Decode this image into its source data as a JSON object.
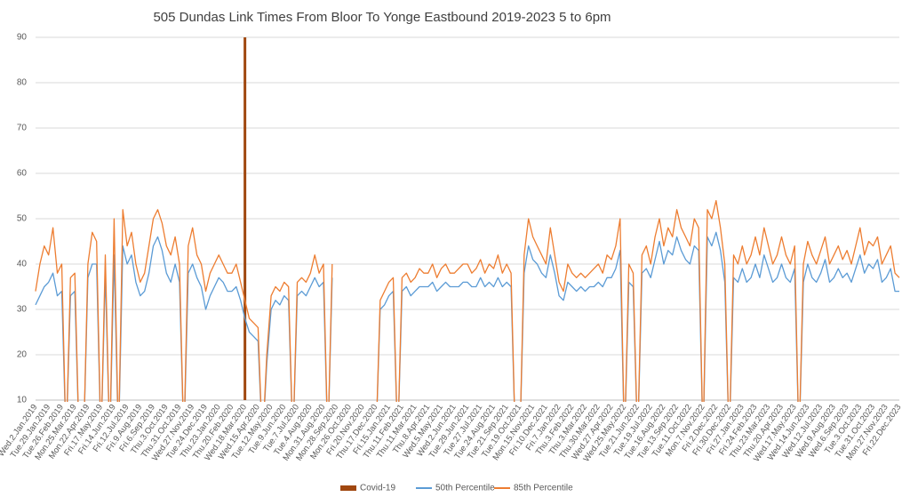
{
  "chart_data": {
    "type": "line",
    "title": "505 Dundas Link Times From Bloor To Yonge Eastbound 2019-2023 5 to 6pm",
    "categories": [
      "Wed.2.Jan.2019",
      null,
      null,
      "Tue.29.Jan.2019",
      null,
      null,
      "Tue.26.Feb.2019",
      null,
      null,
      "Mon.25.Mar.2019",
      null,
      null,
      "Mon.22.Apr.2019",
      null,
      null,
      "Fri.17.May.2019",
      null,
      null,
      "Fri.14.Jun.2019",
      null,
      null,
      "Fri.12.Jul.2019",
      null,
      null,
      "Fri.9.Aug.2019",
      null,
      null,
      "Fri.6.Sep.2019",
      null,
      null,
      "Thu.3.Oct.2019",
      null,
      null,
      "Thu.31.Oct.2019",
      null,
      null,
      "Wed.27.Nov.2019",
      null,
      null,
      "Tue.24.Dec.2019",
      null,
      null,
      "Thu.23.Jan.2020",
      null,
      null,
      "Thu.20.Feb.2020",
      null,
      null,
      "Wed.18.Mar.2020",
      null,
      null,
      "Wed.15.Apr.2020",
      null,
      null,
      "Tue.12.May.2020",
      null,
      null,
      "Tue.9.Jun.2020",
      null,
      null,
      "Tue.7.Jul.2020",
      null,
      null,
      "Tue.4.Aug.2020",
      null,
      null,
      "Mon.31.Aug.2020",
      null,
      null,
      "Mon.28.Sep.2020",
      null,
      null,
      "Mon.26.Oct.2020",
      null,
      null,
      "Fri.20.Nov.2020",
      null,
      null,
      "Thu.17.Dec.2020",
      null,
      null,
      "Fri.15.Jan.2021",
      null,
      null,
      "Thu.11.Feb.2021",
      null,
      null,
      "Thu.11.Mar.2021",
      null,
      null,
      "Thu.8.Apr.2021",
      null,
      null,
      "Wed.5.May.2021",
      null,
      null,
      "Wed.2.Jun.2021",
      null,
      null,
      "Tue.29.Jun.2021",
      null,
      null,
      "Tue.27.Jul.2021",
      null,
      null,
      "Tue.24.Aug.2021",
      null,
      null,
      "Tue.21.Sep.2021",
      null,
      null,
      "Tue.19.Oct.2021",
      null,
      null,
      "Mon.15.Nov.2021",
      null,
      null,
      "Fri.10.Dec.2021",
      null,
      null,
      "Fri.7.Jan.2022",
      null,
      null,
      "Thu.3.Feb.2022",
      null,
      null,
      "Thu.3.Mar.2022",
      null,
      null,
      "Thu.30.Mar.2022",
      null,
      null,
      "Wed.27.Apr.2022",
      null,
      null,
      "Wed.25.May.2022",
      null,
      null,
      "Tue.21.Jun.2022",
      null,
      null,
      "Tue.19.Jul.2022",
      null,
      null,
      "Tue.16.Aug.2022",
      null,
      null,
      "Tue.13.Sep.2022",
      null,
      null,
      "Tue.11.Oct.2022",
      null,
      null,
      "Mon.7.Nov.2022",
      null,
      null,
      "Fri.2.Dec.2022",
      null,
      null,
      "Fri.30.Dec.2022",
      null,
      null,
      "Fri.27.Jan.2023",
      null,
      null,
      "Fri.24.Feb.2023",
      null,
      null,
      "Thu.23.Mar.2023",
      null,
      null,
      "Thu.20.Apr.2023",
      null,
      null,
      "Wed.17.May.2023",
      null,
      null,
      "Wed.14.Jun.2023",
      null,
      null,
      "Wed.12.Jul.2023",
      null,
      null,
      "Wed.9.Aug.2023",
      null,
      null,
      "Wed.6.Sep.2023",
      null,
      null,
      "Tue.3.Oct.2023",
      null,
      null,
      "Tue.31.Oct.2023",
      null,
      null,
      "Mon.27.Nov.2023",
      null,
      null,
      "Fri.22.Dec.2023"
    ],
    "series": [
      {
        "name": "Covid-19",
        "type": "bar",
        "color": "#a0470f",
        "values": [
          null,
          null,
          null,
          null,
          null,
          null,
          null,
          null,
          null,
          null,
          null,
          null,
          null,
          null,
          null,
          null,
          null,
          null,
          null,
          null,
          null,
          null,
          null,
          null,
          null,
          null,
          null,
          null,
          null,
          null,
          null,
          null,
          null,
          null,
          null,
          null,
          null,
          null,
          null,
          null,
          null,
          null,
          null,
          null,
          null,
          null,
          null,
          null,
          90,
          null,
          null,
          null,
          null,
          null,
          null,
          null,
          null,
          null,
          null,
          null,
          null,
          null,
          null,
          null,
          null,
          null,
          null,
          null,
          null,
          null,
          null,
          null,
          null,
          null,
          null,
          null,
          null,
          null,
          null,
          null,
          null,
          null,
          null,
          null,
          null,
          null,
          null,
          null,
          null,
          null,
          null,
          null,
          null,
          null,
          null,
          null,
          null,
          null,
          null,
          null,
          null,
          null,
          null,
          null,
          null,
          null,
          null,
          null,
          null,
          null,
          null,
          null,
          null,
          null,
          null,
          null,
          null,
          null,
          null,
          null,
          null,
          null,
          null,
          null,
          null,
          null,
          null,
          null,
          null,
          null,
          null,
          null,
          null,
          null,
          null,
          null,
          null,
          null,
          null,
          null,
          null,
          null,
          null,
          null,
          null,
          null,
          null,
          null,
          null,
          null,
          null,
          null,
          null,
          null,
          null,
          null,
          null,
          null,
          null,
          null,
          null,
          null,
          null,
          null,
          null,
          null,
          null,
          null,
          null,
          null,
          null,
          null,
          null,
          null,
          null,
          null,
          null,
          null,
          null,
          null,
          null,
          null,
          null,
          null,
          null,
          null,
          null,
          null,
          null,
          null,
          null,
          null,
          null,
          null,
          null,
          null,
          null,
          null,
          null
        ]
      },
      {
        "name": "50th Percentile",
        "type": "line",
        "color": "#5b9bd5",
        "values": [
          31,
          33,
          35,
          36,
          38,
          33,
          34,
          0,
          33,
          34,
          0,
          0,
          37,
          40,
          40,
          0,
          38,
          0,
          42,
          0,
          44,
          40,
          42,
          36,
          33,
          34,
          38,
          44,
          46,
          43,
          38,
          36,
          40,
          36,
          0,
          38,
          40,
          37,
          35,
          30,
          33,
          35,
          37,
          36,
          34,
          34,
          35,
          32,
          28,
          25,
          24,
          23,
          0,
          18,
          30,
          32,
          31,
          33,
          32,
          0,
          33,
          34,
          33,
          35,
          37,
          35,
          36,
          0,
          37,
          null,
          null,
          null,
          null,
          null,
          null,
          null,
          null,
          null,
          0,
          30,
          31,
          33,
          34,
          0,
          34,
          35,
          33,
          34,
          35,
          35,
          35,
          36,
          34,
          35,
          36,
          35,
          35,
          35,
          36,
          36,
          35,
          35,
          37,
          35,
          36,
          35,
          37,
          35,
          36,
          35,
          0,
          0,
          38,
          44,
          41,
          40,
          38,
          37,
          42,
          38,
          33,
          32,
          36,
          35,
          34,
          35,
          34,
          35,
          35,
          36,
          35,
          37,
          37,
          39,
          43,
          0,
          36,
          35,
          0,
          38,
          39,
          37,
          41,
          45,
          40,
          43,
          42,
          46,
          43,
          41,
          40,
          44,
          43,
          0,
          46,
          44,
          47,
          43,
          36,
          0,
          37,
          36,
          39,
          36,
          37,
          40,
          37,
          42,
          39,
          36,
          37,
          40,
          37,
          36,
          39,
          0,
          36,
          40,
          37,
          36,
          38,
          41,
          36,
          37,
          39,
          37,
          38,
          36,
          39,
          42,
          38,
          40,
          39,
          41,
          36,
          37,
          39,
          34,
          34
        ]
      },
      {
        "name": "85th Percentile",
        "type": "line",
        "color": "#ed7d31",
        "values": [
          34,
          40,
          44,
          42,
          48,
          38,
          40,
          0,
          37,
          38,
          0,
          0,
          40,
          47,
          45,
          0,
          42,
          0,
          50,
          0,
          52,
          44,
          47,
          40,
          36,
          38,
          44,
          50,
          52,
          49,
          44,
          42,
          46,
          40,
          0,
          44,
          48,
          42,
          40,
          34,
          38,
          40,
          42,
          40,
          38,
          38,
          40,
          36,
          32,
          28,
          27,
          26,
          0,
          20,
          33,
          35,
          34,
          36,
          35,
          0,
          36,
          37,
          36,
          38,
          42,
          38,
          40,
          0,
          40,
          null,
          null,
          null,
          null,
          null,
          null,
          null,
          null,
          null,
          0,
          32,
          34,
          36,
          37,
          0,
          37,
          38,
          36,
          37,
          39,
          38,
          38,
          40,
          37,
          39,
          40,
          38,
          38,
          39,
          40,
          40,
          38,
          39,
          41,
          38,
          40,
          39,
          42,
          38,
          40,
          38,
          0,
          0,
          42,
          50,
          46,
          44,
          42,
          40,
          48,
          42,
          36,
          34,
          40,
          38,
          37,
          38,
          37,
          38,
          39,
          40,
          38,
          42,
          41,
          44,
          50,
          0,
          40,
          38,
          0,
          42,
          44,
          40,
          46,
          50,
          44,
          48,
          46,
          52,
          48,
          46,
          44,
          50,
          48,
          0,
          52,
          50,
          54,
          48,
          40,
          0,
          42,
          40,
          44,
          40,
          42,
          46,
          42,
          48,
          44,
          40,
          42,
          46,
          42,
          40,
          44,
          0,
          40,
          45,
          42,
          40,
          43,
          46,
          40,
          42,
          44,
          41,
          43,
          40,
          44,
          48,
          42,
          45,
          44,
          46,
          40,
          42,
          44,
          38,
          37
        ]
      }
    ],
    "ylim": [
      10,
      90
    ],
    "yticks": [
      10,
      20,
      30,
      40,
      50,
      60,
      70,
      80,
      90
    ],
    "grid": true,
    "legend": "bottom"
  }
}
